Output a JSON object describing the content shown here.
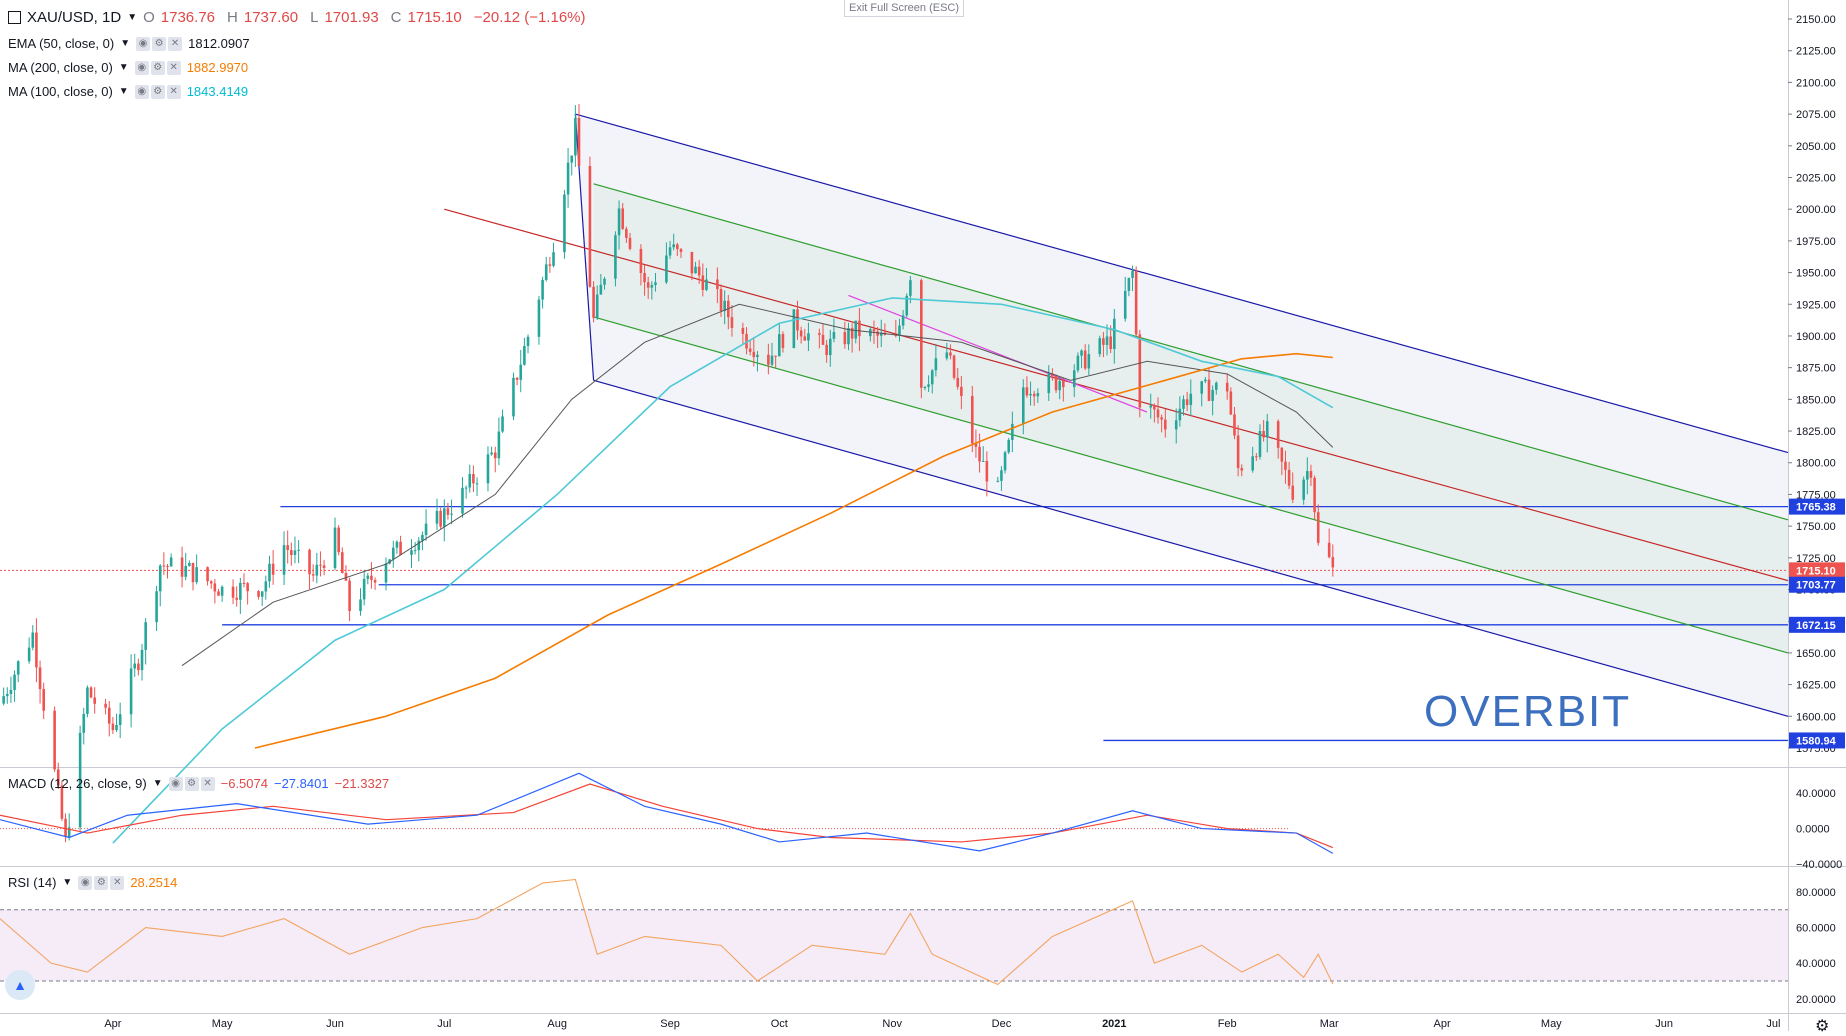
{
  "header": {
    "symbol": "XAU/USD, 1D",
    "open_label": "O",
    "open": "1736.76",
    "high_label": "H",
    "high": "1737.60",
    "low_label": "L",
    "low": "1701.93",
    "close_label": "C",
    "close": "1715.10",
    "change": "−20.12 (−1.16%)"
  },
  "indicators": [
    {
      "name": "EMA (50, close, 0)",
      "value": "1812.0907",
      "color": "#131722"
    },
    {
      "name": "MA (200, close, 0)",
      "value": "1882.9970",
      "color": "#f57c00"
    },
    {
      "name": "MA (100, close, 0)",
      "value": "1843.4149",
      "color": "#00bcd4"
    }
  ],
  "macd_legend": {
    "name": "MACD (12, 26, close, 9)",
    "v1": "−6.5074",
    "v2": "−27.8401",
    "v3": "−21.3327"
  },
  "rsi_legend": {
    "name": "RSI (14)",
    "value": "28.2514"
  },
  "exit_fullscreen": "Exit Full Screen (ESC)",
  "watermark": "OVERBIT",
  "colors": {
    "up": "#26a69a",
    "down": "#ef5350",
    "channel": "#1a1aa8",
    "inner": "#2e9e2e",
    "median": "#c62828",
    "hline": "#2040e0",
    "macd": "#2962ff",
    "signal": "#f44336",
    "rsi": "#f4a460"
  },
  "chart_data": {
    "type": "line",
    "main_panel": {
      "y_ticks": [
        "2150.00",
        "2125.00",
        "2100.00",
        "2075.00",
        "2050.00",
        "2025.00",
        "2000.00",
        "1975.00",
        "1950.00",
        "1925.00",
        "1900.00",
        "1875.00",
        "1850.00",
        "1825.00",
        "1800.00",
        "1775.00",
        "1750.00",
        "1725.00",
        "1700.00",
        "1675.00",
        "1650.00",
        "1625.00",
        "1600.00",
        "1575.00"
      ],
      "x_ticks": [
        "Apr",
        "May",
        "Jun",
        "Jul",
        "Aug",
        "Sep",
        "Oct",
        "Nov",
        "Dec",
        "2021",
        "Feb",
        "Mar",
        "Apr",
        "May",
        "Jun",
        "Jul"
      ],
      "ylim": [
        1560,
        2165
      ],
      "xlim": [
        "2020-03-01",
        "2021-07-05"
      ],
      "price_labels": [
        {
          "value": "1765.38",
          "kind": "hline"
        },
        {
          "value": "1715.10",
          "kind": "last"
        },
        {
          "value": "1703.77",
          "kind": "hline"
        },
        {
          "value": "1672.15",
          "kind": "hline"
        },
        {
          "value": "1580.94",
          "kind": "hline"
        }
      ],
      "close_series": [
        [
          "2020-03-01",
          1610
        ],
        [
          "2020-03-10",
          1665
        ],
        [
          "2020-03-19",
          1500
        ],
        [
          "2020-03-25",
          1620
        ],
        [
          "2020-04-01",
          1590
        ],
        [
          "2020-04-08",
          1645
        ],
        [
          "2020-04-14",
          1720
        ],
        [
          "2020-04-22",
          1715
        ],
        [
          "2020-05-01",
          1700
        ],
        [
          "2020-05-12",
          1702
        ],
        [
          "2020-05-18",
          1735
        ],
        [
          "2020-05-26",
          1710
        ],
        [
          "2020-06-01",
          1740
        ],
        [
          "2020-06-05",
          1685
        ],
        [
          "2020-06-15",
          1725
        ],
        [
          "2020-06-26",
          1745
        ],
        [
          "2020-07-06",
          1775
        ],
        [
          "2020-07-15",
          1810
        ],
        [
          "2020-07-24",
          1900
        ],
        [
          "2020-07-31",
          1975
        ],
        [
          "2020-08-06",
          2063
        ],
        [
          "2020-08-11",
          1912
        ],
        [
          "2020-08-18",
          2000
        ],
        [
          "2020-08-26",
          1935
        ],
        [
          "2020-09-01",
          1970
        ],
        [
          "2020-09-10",
          1945
        ],
        [
          "2020-09-21",
          1900
        ],
        [
          "2020-09-28",
          1882
        ],
        [
          "2020-10-05",
          1912
        ],
        [
          "2020-10-13",
          1890
        ],
        [
          "2020-10-22",
          1904
        ],
        [
          "2020-11-02",
          1895
        ],
        [
          "2020-11-06",
          1950
        ],
        [
          "2020-11-09",
          1862
        ],
        [
          "2020-11-16",
          1887
        ],
        [
          "2020-11-24",
          1808
        ],
        [
          "2020-11-30",
          1777
        ],
        [
          "2020-12-07",
          1860
        ],
        [
          "2020-12-16",
          1864
        ],
        [
          "2020-12-23",
          1880
        ],
        [
          "2020-12-31",
          1897
        ],
        [
          "2021-01-06",
          1950
        ],
        [
          "2021-01-08",
          1850
        ],
        [
          "2021-01-15",
          1830
        ],
        [
          "2021-01-22",
          1855
        ],
        [
          "2021-02-01",
          1860
        ],
        [
          "2021-02-04",
          1795
        ],
        [
          "2021-02-12",
          1824
        ],
        [
          "2021-02-19",
          1778
        ],
        [
          "2021-02-24",
          1797
        ],
        [
          "2021-02-26",
          1734
        ],
        [
          "2021-03-01",
          1723
        ],
        [
          "2021-03-02",
          1715.1
        ]
      ],
      "series": [
        {
          "name": "EMA (50, close, 0)",
          "points": [
            [
              "2020-04-20",
              1640
            ],
            [
              "2020-05-15",
              1690
            ],
            [
              "2020-06-15",
              1720
            ],
            [
              "2020-07-15",
              1775
            ],
            [
              "2020-08-05",
              1850
            ],
            [
              "2020-08-25",
              1895
            ],
            [
              "2020-09-20",
              1925
            ],
            [
              "2020-10-20",
              1905
            ],
            [
              "2020-11-20",
              1895
            ],
            [
              "2020-12-20",
              1865
            ],
            [
              "2021-01-10",
              1880
            ],
            [
              "2021-02-01",
              1870
            ],
            [
              "2021-02-20",
              1840
            ],
            [
              "2021-03-02",
              1812.09
            ]
          ]
        },
        {
          "name": "MA (200, close, 0)",
          "points": [
            [
              "2020-05-10",
              1575
            ],
            [
              "2020-06-15",
              1600
            ],
            [
              "2020-07-15",
              1630
            ],
            [
              "2020-08-15",
              1680
            ],
            [
              "2020-09-15",
              1720
            ],
            [
              "2020-10-15",
              1760
            ],
            [
              "2020-11-15",
              1805
            ],
            [
              "2020-12-15",
              1840
            ],
            [
              "2021-01-15",
              1865
            ],
            [
              "2021-02-05",
              1882
            ],
            [
              "2021-02-20",
              1886
            ],
            [
              "2021-03-02",
              1883
            ]
          ]
        },
        {
          "name": "MA (100, close, 0)",
          "points": [
            [
              "2020-04-01",
              1500
            ],
            [
              "2020-05-01",
              1590
            ],
            [
              "2020-06-01",
              1660
            ],
            [
              "2020-07-01",
              1700
            ],
            [
              "2020-08-01",
              1775
            ],
            [
              "2020-09-01",
              1860
            ],
            [
              "2020-10-01",
              1910
            ],
            [
              "2020-11-01",
              1930
            ],
            [
              "2020-12-01",
              1925
            ],
            [
              "2021-01-01",
              1905
            ],
            [
              "2021-01-25",
              1880
            ],
            [
              "2021-02-15",
              1868
            ],
            [
              "2021-03-02",
              1843.41
            ]
          ]
        }
      ],
      "hlines": [
        {
          "value": 1765.38,
          "from": "2020-05-17"
        },
        {
          "value": 1703.77,
          "from": "2020-06-13"
        },
        {
          "value": 1672.15,
          "from": "2020-05-01"
        },
        {
          "value": 1580.94,
          "from": "2020-12-29"
        }
      ],
      "regression_channel": {
        "outer_upper": [
          [
            "2020-08-06",
            2075
          ],
          [
            "2021-07-05",
            1808
          ]
        ],
        "outer_lower": [
          [
            "2020-08-11",
            1865
          ],
          [
            "2021-07-05",
            1600
          ]
        ],
        "inner_upper": [
          [
            "2020-08-11",
            2020
          ],
          [
            "2021-07-05",
            1755
          ]
        ],
        "inner_lower": [
          [
            "2020-08-11",
            1915
          ],
          [
            "2021-07-05",
            1650
          ]
        ],
        "median": [
          [
            "2020-07-01",
            2000
          ],
          [
            "2021-07-05",
            1707
          ]
        ]
      }
    },
    "macd_panel": {
      "y_ticks": [
        "40.0000",
        "0.0000",
        "−40.0000"
      ],
      "ylim": [
        -42,
        68
      ],
      "macd": [
        [
          "2020-03-01",
          10
        ],
        [
          "2020-03-20",
          -10
        ],
        [
          "2020-04-05",
          15
        ],
        [
          "2020-05-05",
          28
        ],
        [
          "2020-06-10",
          5
        ],
        [
          "2020-07-10",
          15
        ],
        [
          "2020-08-07",
          62
        ],
        [
          "2020-08-25",
          25
        ],
        [
          "2020-09-15",
          5
        ],
        [
          "2020-10-01",
          -15
        ],
        [
          "2020-10-25",
          -5
        ],
        [
          "2020-11-25",
          -25
        ],
        [
          "2020-12-15",
          -5
        ],
        [
          "2021-01-06",
          20
        ],
        [
          "2021-01-25",
          0
        ],
        [
          "2021-02-20",
          -5
        ],
        [
          "2021-03-02",
          -27.84
        ]
      ],
      "signal": [
        [
          "2020-03-01",
          15
        ],
        [
          "2020-03-25",
          -5
        ],
        [
          "2020-04-20",
          15
        ],
        [
          "2020-05-15",
          25
        ],
        [
          "2020-06-15",
          10
        ],
        [
          "2020-07-20",
          18
        ],
        [
          "2020-08-10",
          50
        ],
        [
          "2020-08-30",
          25
        ],
        [
          "2020-09-25",
          0
        ],
        [
          "2020-10-15",
          -10
        ],
        [
          "2020-11-20",
          -15
        ],
        [
          "2020-12-15",
          -5
        ],
        [
          "2021-01-10",
          15
        ],
        [
          "2021-02-01",
          0
        ],
        [
          "2021-02-20",
          -5
        ],
        [
          "2021-03-02",
          -21.33
        ]
      ]
    },
    "rsi_panel": {
      "y_ticks": [
        "80.0000",
        "60.0000",
        "40.0000",
        "20.0000"
      ],
      "ylim": [
        12,
        94
      ],
      "band": [
        30,
        70
      ],
      "rsi": [
        [
          "2020-03-01",
          65
        ],
        [
          "2020-03-15",
          40
        ],
        [
          "2020-03-25",
          35
        ],
        [
          "2020-04-10",
          60
        ],
        [
          "2020-05-01",
          55
        ],
        [
          "2020-05-18",
          65
        ],
        [
          "2020-06-05",
          45
        ],
        [
          "2020-06-25",
          60
        ],
        [
          "2020-07-10",
          65
        ],
        [
          "2020-07-28",
          85
        ],
        [
          "2020-08-06",
          87
        ],
        [
          "2020-08-12",
          45
        ],
        [
          "2020-08-25",
          55
        ],
        [
          "2020-09-15",
          50
        ],
        [
          "2020-09-25",
          30
        ],
        [
          "2020-10-10",
          50
        ],
        [
          "2020-10-30",
          45
        ],
        [
          "2020-11-06",
          68
        ],
        [
          "2020-11-12",
          45
        ],
        [
          "2020-11-30",
          28
        ],
        [
          "2020-12-15",
          55
        ],
        [
          "2021-01-06",
          75
        ],
        [
          "2021-01-12",
          40
        ],
        [
          "2021-01-25",
          50
        ],
        [
          "2021-02-05",
          35
        ],
        [
          "2021-02-15",
          45
        ],
        [
          "2021-02-22",
          32
        ],
        [
          "2021-02-26",
          45
        ],
        [
          "2021-03-02",
          28.25
        ]
      ]
    }
  }
}
